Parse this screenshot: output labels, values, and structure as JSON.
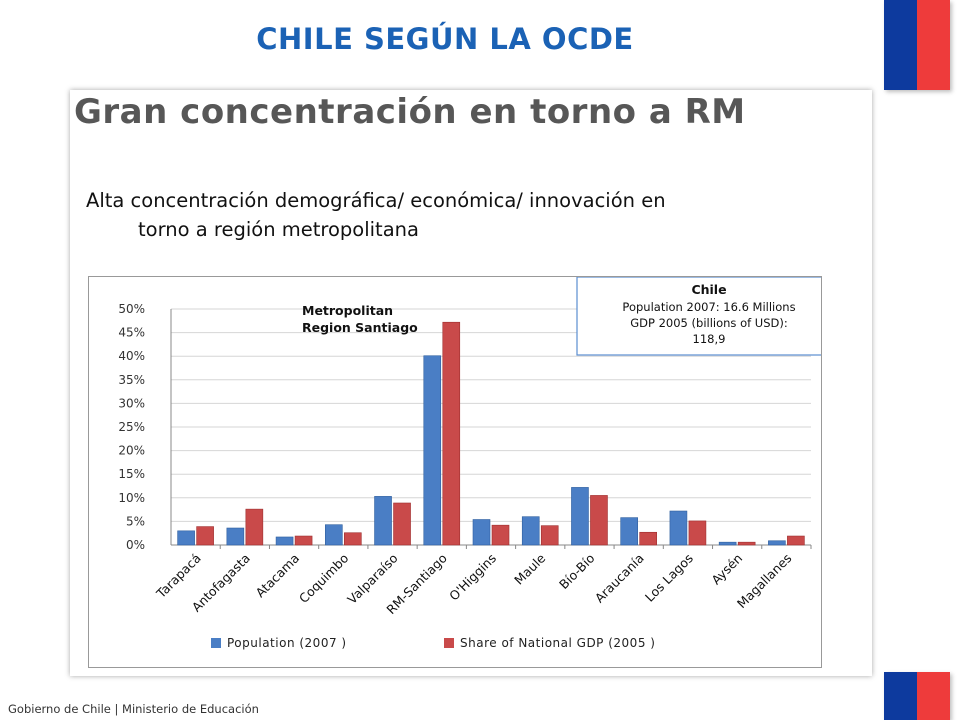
{
  "slide": {
    "title": "CHILE SEGÚN LA OCDE",
    "footer": "Gobierno de Chile | Ministerio de Educación"
  },
  "panel": {
    "title": "Gran concentración en torno a RM",
    "subtitle_line1": "Alta concentración demográfica/ económica/ innovación en",
    "subtitle_line2": "torno a región metropolitana"
  },
  "colors": {
    "title_blue": "#1b62b5",
    "population": "#4a7ec5",
    "gdp": "#c94a4a",
    "flag_blue": "#0d3a9e",
    "flag_red": "#ee3b3b"
  },
  "chart_data": {
    "type": "bar",
    "categories": [
      "Tarapacá",
      "Antofagasta",
      "Atacama",
      "Coquimbo",
      "Valparaíso",
      "RM-Santiago",
      "O'Higgins",
      "Maule",
      "Bío-Bío",
      "Araucanía",
      "Los Lagos",
      "Aysén",
      "Magallanes"
    ],
    "series": [
      {
        "name": "Population (2007 )",
        "values": [
          3.0,
          3.6,
          1.7,
          4.3,
          10.3,
          40.1,
          5.4,
          6.0,
          12.2,
          5.8,
          7.2,
          0.6,
          0.9
        ]
      },
      {
        "name": "Share of National GDP (2005 )",
        "values": [
          3.9,
          7.6,
          1.9,
          2.6,
          8.9,
          47.2,
          4.2,
          4.1,
          10.5,
          2.7,
          5.1,
          0.6,
          1.9
        ]
      }
    ],
    "yticks": [
      "50%",
      "45%",
      "40%",
      "35%",
      "30%",
      "25%",
      "20%",
      "15%",
      "10%",
      "5%",
      "0%"
    ],
    "ylim": [
      0,
      50
    ],
    "grid": true,
    "legend_position": "bottom",
    "annotations": {
      "metro_line1": "Metropolitan",
      "metro_line2": "Region Santiago",
      "box_title": "Chile",
      "box_line1": "Population 2007: 16.6 Millions",
      "box_line2": "GDP  2005 (billions of USD):",
      "box_line3": "118,9"
    }
  }
}
